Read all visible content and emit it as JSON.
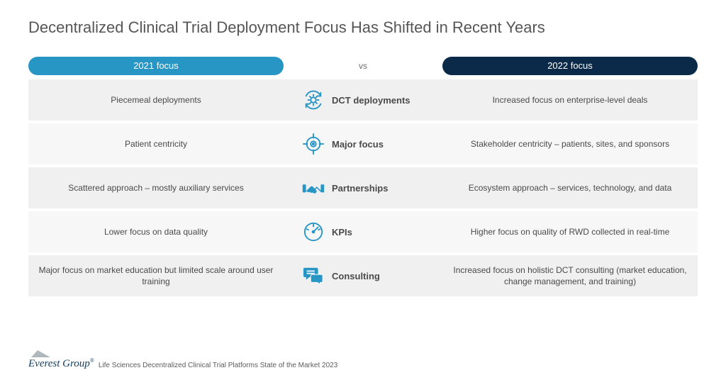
{
  "title": "Decentralized Clinical Trial Deployment Focus Has Shifted in Recent Years",
  "headers": {
    "left": "2021 focus",
    "mid": "vs",
    "right": "2022 focus"
  },
  "colors": {
    "left_pill": "#2796c4",
    "right_pill": "#0b2a4a",
    "icon": "#2796c4",
    "row_bg": "#f0f0f0",
    "row_alt_bg": "#f7f7f7",
    "title": "#565656",
    "text": "#4a4a4a"
  },
  "rows": [
    {
      "left": "Piecemeal deployments",
      "icon": "gear-cycle",
      "category": "DCT deployments",
      "right": "Increased focus on enterprise-level deals"
    },
    {
      "left": "Patient centricity",
      "icon": "target",
      "category": "Major focus",
      "right": "Stakeholder centricity – patients, sites, and sponsors"
    },
    {
      "left": "Scattered approach – mostly auxiliary services",
      "icon": "handshake",
      "category": "Partnerships",
      "right": "Ecosystem approach – services, technology, and data"
    },
    {
      "left": "Lower focus on data quality",
      "icon": "gauge",
      "category": "KPIs",
      "right": "Higher focus on quality of RWD collected in real-time"
    },
    {
      "left": "Major focus on market education but limited scale around user training",
      "icon": "chat",
      "category": "Consulting",
      "right": "Increased focus on holistic DCT consulting (market education, change management, and training)"
    }
  ],
  "footer": {
    "brand_first": "Everest",
    "brand_second": "Group",
    "brand_reg": "®",
    "credit": "Life Sciences Decentralized Clinical Trial Platforms State of the Market 2023"
  }
}
